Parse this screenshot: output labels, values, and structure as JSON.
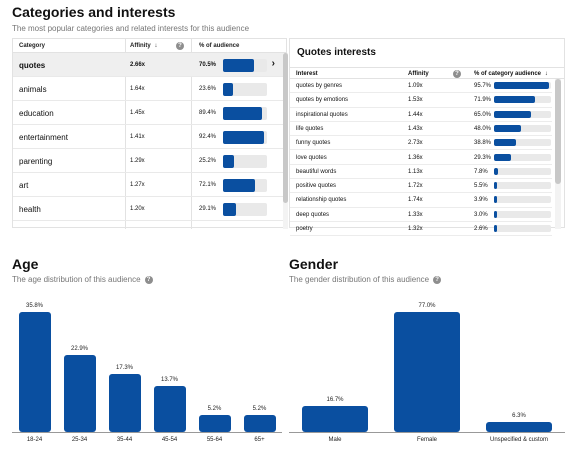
{
  "categories_section": {
    "title": "Categories and interests",
    "subtitle": "The most popular categories and related interests for this audience",
    "columns": {
      "category": "Category",
      "affinity": "Affinity",
      "audience": "% of audience"
    },
    "rows": [
      {
        "name": "quotes",
        "affinity": "2.66x",
        "percent": "70.5%",
        "fraction": 0.705,
        "selected": true
      },
      {
        "name": "animals",
        "affinity": "1.64x",
        "percent": "23.6%",
        "fraction": 0.236
      },
      {
        "name": "education",
        "affinity": "1.45x",
        "percent": "89.4%",
        "fraction": 0.894
      },
      {
        "name": "entertainment",
        "affinity": "1.41x",
        "percent": "92.4%",
        "fraction": 0.924
      },
      {
        "name": "parenting",
        "affinity": "1.29x",
        "percent": "25.2%",
        "fraction": 0.252
      },
      {
        "name": "art",
        "affinity": "1.27x",
        "percent": "72.1%",
        "fraction": 0.721
      },
      {
        "name": "health",
        "affinity": "1.20x",
        "percent": "29.1%",
        "fraction": 0.291
      }
    ]
  },
  "quotes_interests": {
    "title": "Quotes interests",
    "columns": {
      "interest": "Interest",
      "affinity": "Affinity",
      "audience": "% of category audience"
    },
    "rows": [
      {
        "name": "quotes by genres",
        "affinity": "1.09x",
        "percent": "95.7%",
        "fraction": 0.957
      },
      {
        "name": "quotes by emotions",
        "affinity": "1.53x",
        "percent": "71.9%",
        "fraction": 0.719
      },
      {
        "name": "inspirational quotes",
        "affinity": "1.44x",
        "percent": "65.0%",
        "fraction": 0.65
      },
      {
        "name": "life quotes",
        "affinity": "1.43x",
        "percent": "48.0%",
        "fraction": 0.48
      },
      {
        "name": "funny quotes",
        "affinity": "2.73x",
        "percent": "38.8%",
        "fraction": 0.388
      },
      {
        "name": "love quotes",
        "affinity": "1.36x",
        "percent": "29.3%",
        "fraction": 0.293
      },
      {
        "name": "beautiful words",
        "affinity": "1.13x",
        "percent": "7.8%",
        "fraction": 0.078
      },
      {
        "name": "positive quotes",
        "affinity": "1.72x",
        "percent": "5.5%",
        "fraction": 0.055
      },
      {
        "name": "relationship quotes",
        "affinity": "1.74x",
        "percent": "3.9%",
        "fraction": 0.039
      },
      {
        "name": "deep quotes",
        "affinity": "1.33x",
        "percent": "3.0%",
        "fraction": 0.03
      },
      {
        "name": "poetry",
        "affinity": "1.32x",
        "percent": "2.6%",
        "fraction": 0.026
      }
    ]
  },
  "age": {
    "title": "Age",
    "subtitle": "The age distribution of this audience"
  },
  "gender": {
    "title": "Gender",
    "subtitle": "The gender distribution of this audience"
  },
  "colors": {
    "bar": "#0a4fa0",
    "track": "#e9e9e9"
  },
  "chart_data": [
    {
      "type": "bar",
      "title": "Age",
      "categories": [
        "18-24",
        "25-34",
        "35-44",
        "45-54",
        "55-64",
        "65+"
      ],
      "values": [
        35.8,
        22.9,
        17.3,
        13.7,
        5.2,
        5.2
      ],
      "value_labels": [
        "35.8%",
        "22.9%",
        "17.3%",
        "13.7%",
        "5.2%",
        "5.2%"
      ]
    },
    {
      "type": "bar",
      "title": "Gender",
      "categories": [
        "Male",
        "Female",
        "Unspecified & custom"
      ],
      "values": [
        16.7,
        77.0,
        6.3
      ],
      "value_labels": [
        "16.7%",
        "77.0%",
        "6.3%"
      ]
    }
  ]
}
